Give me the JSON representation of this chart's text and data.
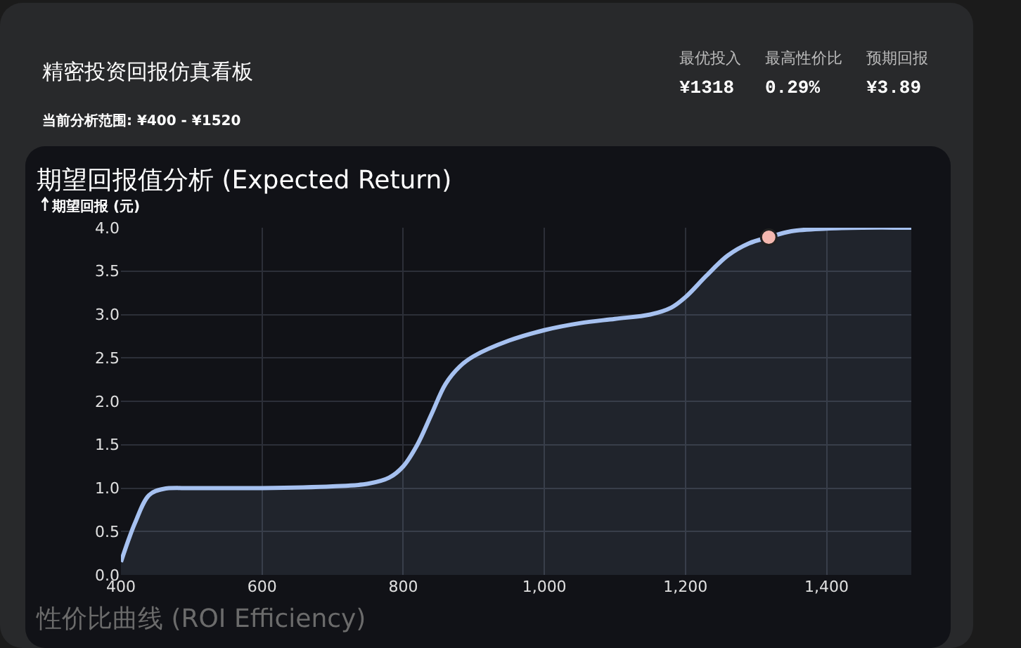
{
  "chart_data": {
    "type": "area",
    "title": "期望回报值分析 (Expected Return)",
    "ylabel": "期望回报 (元)",
    "annotations": [
      "精密投资回报仿真看板",
      "当前分析范围: ¥400 - ¥1520",
      "最优投入",
      "¥1318",
      "最高性价比",
      "0.29%",
      "预期回报",
      "¥3.89",
      "性价比曲线 (ROI Efficiency)"
    ],
    "series": [
      {
        "color": "#a6c1f0",
        "x": [
          400,
          420,
          440,
          460,
          500,
          600,
          700,
          750,
          780,
          800,
          820,
          840,
          860,
          880,
          900,
          950,
          1000,
          1050,
          1100,
          1150,
          1180,
          1200,
          1230,
          1260,
          1290,
          1318,
          1350,
          1400,
          1450,
          1520
        ],
        "values": [
          0.15,
          0.6,
          0.92,
          0.99,
          1.0,
          1.0,
          1.02,
          1.05,
          1.12,
          1.25,
          1.5,
          1.85,
          2.2,
          2.4,
          2.52,
          2.7,
          2.82,
          2.9,
          2.95,
          3.0,
          3.08,
          3.2,
          3.45,
          3.68,
          3.82,
          3.89,
          3.96,
          3.99,
          4.0,
          4.0
        ]
      },
      {
        "type": "scatter",
        "color": "#f4b8b0",
        "x": [
          1318
        ],
        "values": [
          3.89
        ],
        "marker": "circle"
      }
    ],
    "xlim": [
      400,
      1520
    ],
    "xticks": [
      400,
      600,
      800,
      {
        "value": 1000,
        "label": "1,000"
      },
      {
        "value": 1200,
        "label": "1,200"
      },
      {
        "value": 1400,
        "label": "1,400"
      }
    ],
    "ylim": [
      0,
      4
    ],
    "yticks": [
      {
        "value": 0,
        "label": "0.0"
      },
      {
        "value": 0.5,
        "label": "0.5"
      },
      {
        "value": 1,
        "label": "1.0"
      },
      {
        "value": 1.5,
        "label": "1.5"
      },
      {
        "value": 2,
        "label": "2.0"
      },
      {
        "value": 2.5,
        "label": "2.5"
      },
      {
        "value": 3,
        "label": "3.0"
      },
      {
        "value": 3.5,
        "label": "3.5"
      },
      {
        "value": 4,
        "label": "4.0"
      }
    ],
    "grid": true
  }
}
